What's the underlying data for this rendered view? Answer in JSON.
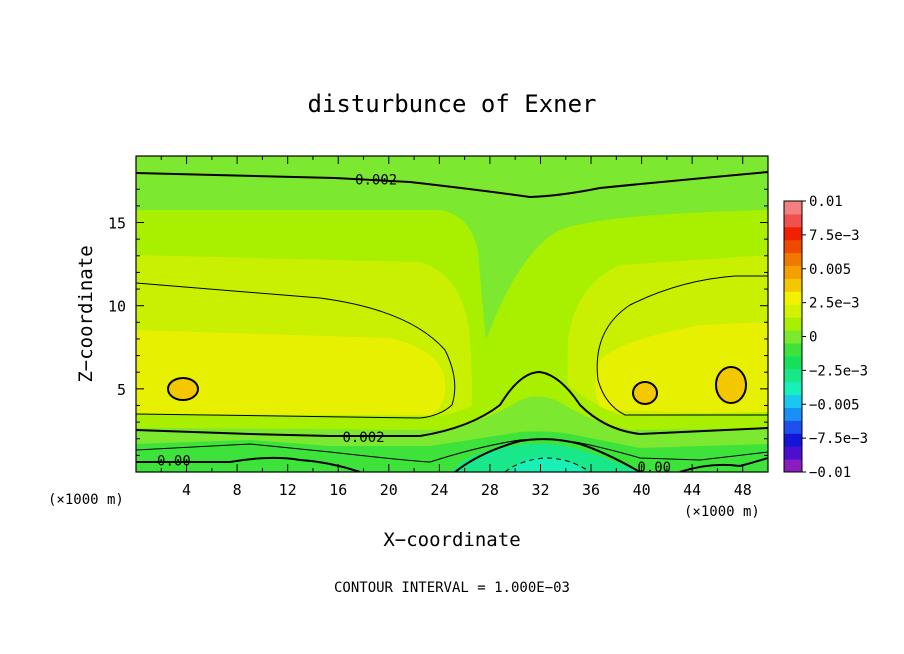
{
  "chart_data": {
    "type": "heatmap",
    "title": "disturbunce of Exner",
    "xlabel": "X−coordinate",
    "ylabel": "Z−coordinate",
    "x_unit_label_left": "(×1000 m)",
    "x_unit_label_right": "(×1000 m)",
    "footer": "CONTOUR INTERVAL = 1.000E−03",
    "xlim": [
      0,
      50
    ],
    "ylim": [
      0,
      19
    ],
    "x_ticks": [
      4,
      8,
      12,
      16,
      20,
      24,
      28,
      32,
      36,
      40,
      44,
      48
    ],
    "x_tick_labels": [
      "4",
      "8",
      "12",
      "16",
      "20",
      "24",
      "28",
      "32",
      "36",
      "40",
      "44",
      "48"
    ],
    "y_ticks": [
      5,
      10,
      15
    ],
    "y_tick_labels": [
      "5",
      "10",
      "15"
    ],
    "contour_labels": [
      {
        "text": "0.002",
        "x": 19,
        "y": 17.6
      },
      {
        "text": "0.002",
        "x": 18,
        "y": 2.1
      },
      {
        "text": "0.00",
        "x": 3,
        "y": 0.7
      },
      {
        "text": "0.00",
        "x": 41,
        "y": 0.3
      }
    ],
    "colorbar": {
      "levels": [
        -0.01,
        -0.0075,
        -0.005,
        -0.0025,
        0,
        0.0025,
        0.005,
        0.0075,
        0.01
      ],
      "labels": [
        "0.01",
        "7.5e−3",
        "0.005",
        "2.5e−3",
        "0",
        "−2.5e−3",
        "−0.005",
        "−7.5e−3",
        "−0.01"
      ],
      "colors_bottom_to_top": [
        "#8a1cc0",
        "#4b10cf",
        "#1515d8",
        "#1e50f0",
        "#1a8ff5",
        "#18c8f0",
        "#18f0b8",
        "#18e88a",
        "#16e05a",
        "#3de33a",
        "#7ce830",
        "#a8f000",
        "#d2f200",
        "#f2f200",
        "#f4c800",
        "#f4a000",
        "#f07a00",
        "#f04a00",
        "#f02000",
        "#f05050",
        "#f28080"
      ]
    },
    "field_colors": {
      "level_minus_0.001_to_0": "#18e88a",
      "level_0_to_0.001": "#3de33a",
      "level_0.001_to_0.0015": "#7ce830",
      "level_0.0015_to_0.002": "#a8f000",
      "level_0.002_to_0.0025": "#c8f000",
      "level_0.0025_to_0.003": "#e6f000",
      "level_0.003_to_0.0035": "#f2f200",
      "level_0.004_to_0.005": "#f4c800"
    },
    "grid": false
  }
}
